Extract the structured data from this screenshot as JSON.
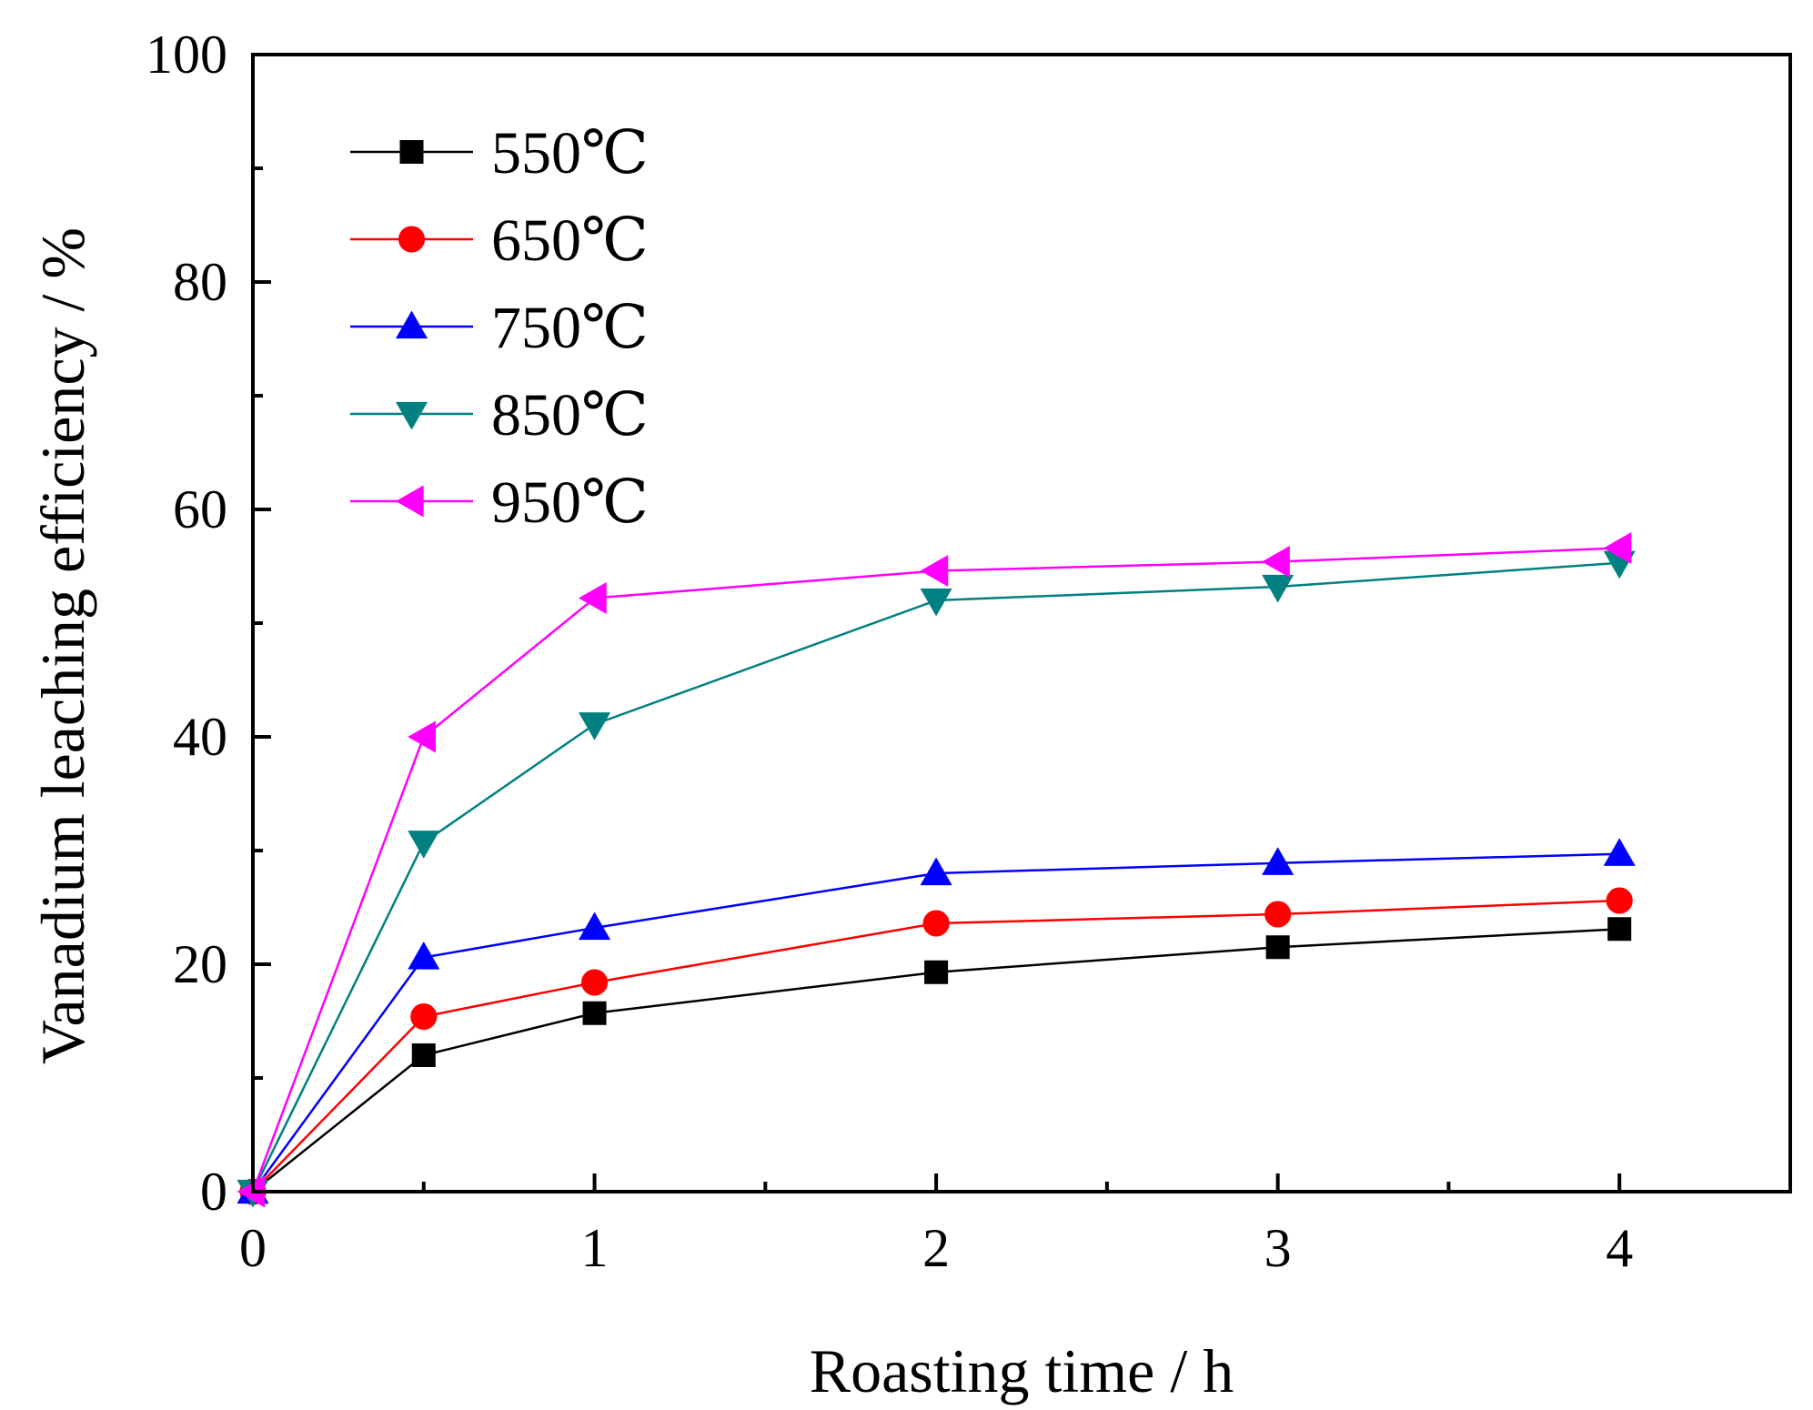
{
  "chart_data": {
    "type": "line",
    "title": "",
    "xlabel": "Roasting time / h",
    "ylabel": "Vanadium leaching efficiency / %",
    "xlim": [
      0,
      4.5
    ],
    "ylim": [
      0,
      100
    ],
    "x_ticks": [
      "0",
      "1",
      "2",
      "3",
      "4"
    ],
    "x_tick_values": [
      0,
      1,
      2,
      3,
      4
    ],
    "y_ticks": [
      "0",
      "20",
      "40",
      "60",
      "80",
      "100"
    ],
    "y_tick_values": [
      0,
      20,
      40,
      60,
      80,
      100
    ],
    "x": [
      0,
      0.5,
      1,
      2,
      3,
      4
    ],
    "grid": false,
    "legend_position": "top-left",
    "series": [
      {
        "name": "550℃",
        "color": "#000000",
        "marker": "square",
        "values": [
          0,
          12.0,
          15.7,
          19.3,
          21.5,
          23.1
        ]
      },
      {
        "name": "650℃",
        "color": "#ff0000",
        "marker": "circle",
        "values": [
          0,
          15.4,
          18.4,
          23.6,
          24.4,
          25.6
        ]
      },
      {
        "name": "750℃",
        "color": "#0000ff",
        "marker": "triangle-up",
        "values": [
          0,
          20.6,
          23.2,
          28.0,
          28.9,
          29.7
        ]
      },
      {
        "name": "850℃",
        "color": "#008080",
        "marker": "triangle-down",
        "values": [
          0,
          30.7,
          41.1,
          52.0,
          53.2,
          55.3
        ]
      },
      {
        "name": "950℃",
        "color": "#ff00ff",
        "marker": "triangle-left",
        "values": [
          0,
          40.0,
          52.2,
          54.6,
          55.4,
          56.6
        ]
      }
    ]
  }
}
